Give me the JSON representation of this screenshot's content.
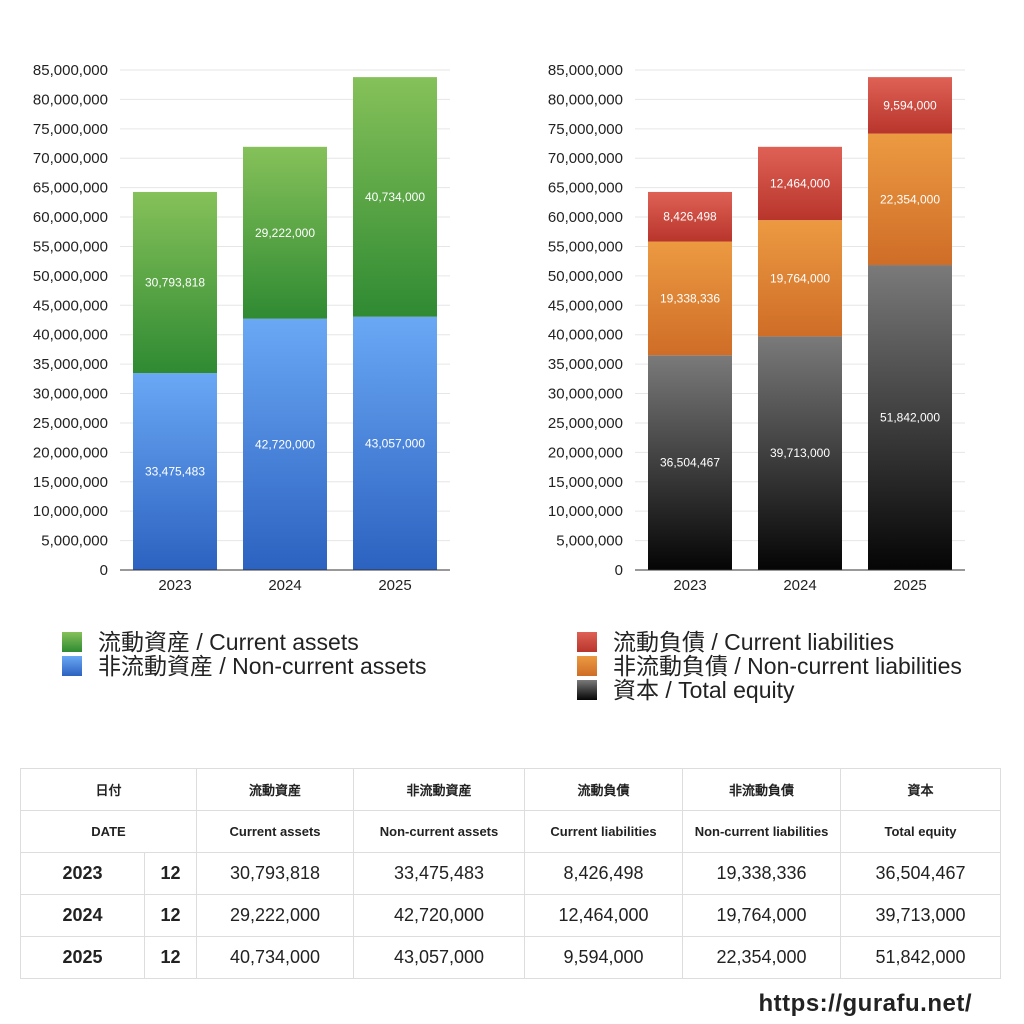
{
  "chart_data": [
    {
      "type": "bar",
      "stacked": true,
      "categories": [
        "2023",
        "2024",
        "2025"
      ],
      "ylim": [
        0,
        85000000
      ],
      "yticks": [
        0,
        5000000,
        10000000,
        15000000,
        20000000,
        25000000,
        30000000,
        35000000,
        40000000,
        45000000,
        50000000,
        55000000,
        60000000,
        65000000,
        70000000,
        75000000,
        80000000,
        85000000
      ],
      "ytick_labels": [
        "0",
        "5,000,000",
        "10,000,000",
        "15,000,000",
        "20,000,000",
        "25,000,000",
        "30,000,000",
        "35,000,000",
        "40,000,000",
        "45,000,000",
        "50,000,000",
        "55,000,000",
        "60,000,000",
        "65,000,000",
        "70,000,000",
        "75,000,000",
        "80,000,000",
        "85,000,000"
      ],
      "grid": true,
      "legend_position": "bottom",
      "series": [
        {
          "name": "非流動資産 / Non-current assets",
          "values": [
            33475483,
            42720000,
            43057000
          ],
          "labels": [
            "33,475,483",
            "42,720,000",
            "43,057,000"
          ],
          "color_top": "#6aa8f5",
          "color_bottom": "#2c62c0"
        },
        {
          "name": "流動資産 / Current assets",
          "values": [
            30793818,
            29222000,
            40734000
          ],
          "labels": [
            "30,793,818",
            "29,222,000",
            "40,734,000"
          ],
          "color_top": "#86c15a",
          "color_bottom": "#2f8a32"
        }
      ]
    },
    {
      "type": "bar",
      "stacked": true,
      "categories": [
        "2023",
        "2024",
        "2025"
      ],
      "ylim": [
        0,
        85000000
      ],
      "yticks": [
        0,
        5000000,
        10000000,
        15000000,
        20000000,
        25000000,
        30000000,
        35000000,
        40000000,
        45000000,
        50000000,
        55000000,
        60000000,
        65000000,
        70000000,
        75000000,
        80000000,
        85000000
      ],
      "ytick_labels": [
        "0",
        "5,000,000",
        "10,000,000",
        "15,000,000",
        "20,000,000",
        "25,000,000",
        "30,000,000",
        "35,000,000",
        "40,000,000",
        "45,000,000",
        "50,000,000",
        "55,000,000",
        "60,000,000",
        "65,000,000",
        "70,000,000",
        "75,000,000",
        "80,000,000",
        "85,000,000"
      ],
      "grid": true,
      "legend_position": "bottom",
      "series": [
        {
          "name": "資本 / Total equity",
          "values": [
            36504467,
            39713000,
            51842000
          ],
          "labels": [
            "36,504,467",
            "39,713,000",
            "51,842,000"
          ],
          "color_top": "#7a7a7a",
          "color_bottom": "#050505"
        },
        {
          "name": "非流動負債 / Non-current liabilities",
          "values": [
            19338336,
            19764000,
            22354000
          ],
          "labels": [
            "19,338,336",
            "19,764,000",
            "22,354,000"
          ],
          "color_top": "#ec9a42",
          "color_bottom": "#cf6d27"
        },
        {
          "name": "流動負債 / Current liabilities",
          "values": [
            8426498,
            12464000,
            9594000
          ],
          "labels": [
            "8,426,498",
            "12,464,000",
            "9,594,000"
          ],
          "color_top": "#df6156",
          "color_bottom": "#b8352c"
        }
      ]
    }
  ],
  "legend_left": [
    {
      "label": "流動資産 / Current assets",
      "color_top": "#86c15a",
      "color_bottom": "#2f8a32"
    },
    {
      "label": "非流動資産 / Non-current assets",
      "color_top": "#6aa8f5",
      "color_bottom": "#2c62c0"
    }
  ],
  "legend_right": [
    {
      "label": "流動負債 / Current liabilities",
      "color_top": "#df6156",
      "color_bottom": "#b8352c"
    },
    {
      "label": "非流動負債 / Non-current liabilities",
      "color_top": "#ec9a42",
      "color_bottom": "#cf6d27"
    },
    {
      "label": "資本 / Total equity",
      "color_top": "#7a7a7a",
      "color_bottom": "#050505"
    }
  ],
  "table": {
    "header_jp": [
      "日付",
      "流動資産",
      "非流動資産",
      "流動負債",
      "非流動負債",
      "資本"
    ],
    "header_en": [
      "DATE",
      "Current assets",
      "Non-current assets",
      "Current liabilities",
      "Non-current liabilities",
      "Total equity"
    ],
    "rows": [
      {
        "year": "2023",
        "month": "12",
        "values": [
          "30,793,818",
          "33,475,483",
          "8,426,498",
          "19,338,336",
          "36,504,467"
        ]
      },
      {
        "year": "2024",
        "month": "12",
        "values": [
          "29,222,000",
          "42,720,000",
          "12,464,000",
          "19,764,000",
          "39,713,000"
        ]
      },
      {
        "year": "2025",
        "month": "12",
        "values": [
          "40,734,000",
          "43,057,000",
          "9,594,000",
          "22,354,000",
          "51,842,000"
        ]
      }
    ]
  },
  "footer": "https://gurafu.net/"
}
